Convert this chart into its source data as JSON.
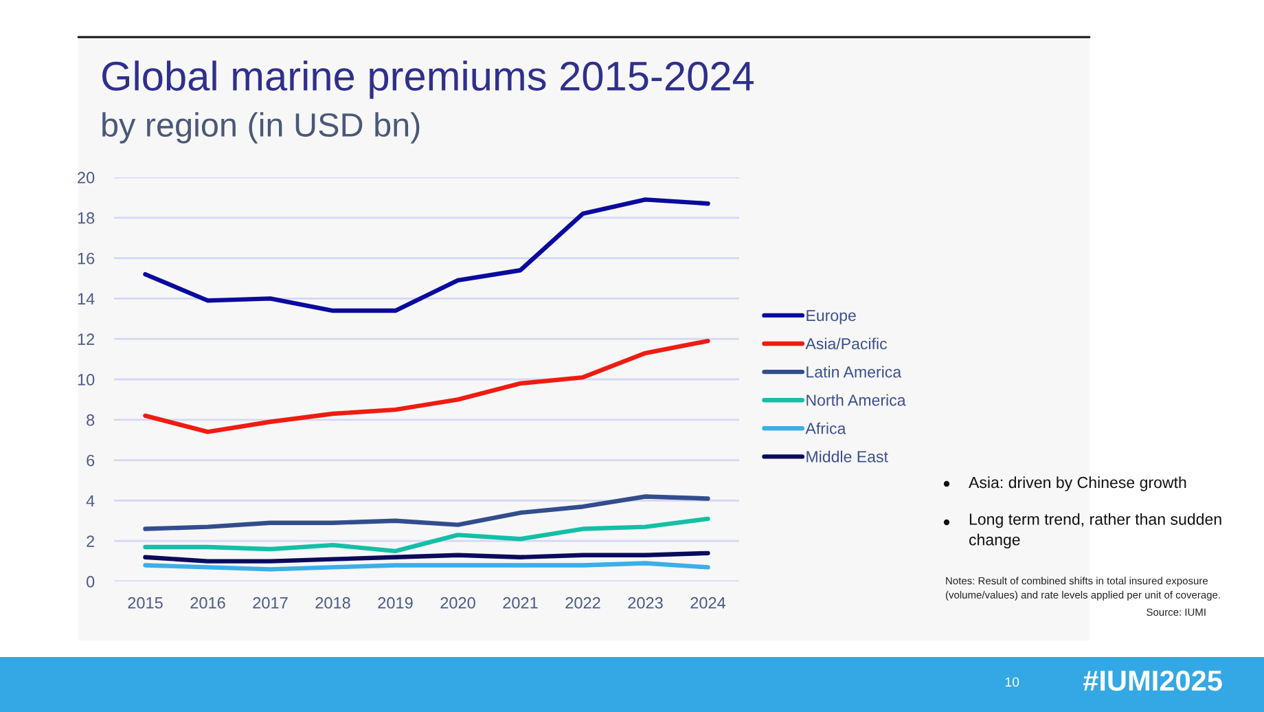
{
  "chart_data": {
    "type": "line",
    "title": "Global marine premiums 2015-2024",
    "subtitle": "by region (in USD bn)",
    "categories": [
      "2015",
      "2016",
      "2017",
      "2018",
      "2019",
      "2020",
      "2021",
      "2022",
      "2023",
      "2024"
    ],
    "series": [
      {
        "name": "Europe",
        "color": "#0a0a9e",
        "values": [
          15.2,
          13.9,
          14.0,
          13.4,
          13.4,
          14.9,
          15.4,
          18.2,
          18.9,
          18.7
        ]
      },
      {
        "name": "Asia/Pacific",
        "color": "#ee1c12",
        "values": [
          8.2,
          7.4,
          7.9,
          8.3,
          8.5,
          9.0,
          9.8,
          10.1,
          11.3,
          11.9
        ]
      },
      {
        "name": "Latin America",
        "color": "#334d8c",
        "values": [
          2.6,
          2.7,
          2.9,
          2.9,
          3.0,
          2.8,
          3.4,
          3.7,
          4.2,
          4.1
        ]
      },
      {
        "name": "North America",
        "color": "#14bfa6",
        "values": [
          1.7,
          1.7,
          1.6,
          1.8,
          1.5,
          2.3,
          2.1,
          2.6,
          2.7,
          3.1
        ]
      },
      {
        "name": "Africa",
        "color": "#3caee8",
        "values": [
          0.8,
          0.7,
          0.6,
          0.7,
          0.8,
          0.8,
          0.8,
          0.8,
          0.9,
          0.7
        ]
      },
      {
        "name": "Middle East",
        "color": "#0b0b5c",
        "values": [
          1.2,
          1.0,
          1.0,
          1.1,
          1.2,
          1.3,
          1.2,
          1.3,
          1.3,
          1.4
        ]
      }
    ],
    "ylim": [
      0,
      20
    ],
    "yticks": [
      0,
      2,
      4,
      6,
      8,
      10,
      12,
      14,
      16,
      18,
      20
    ],
    "grid": "y",
    "legend": "right",
    "annotations": [
      "Asia: driven by Chinese growth",
      "Long term trend, rather than sudden change",
      "Notes: Result of combined shifts in total insured exposure (volume/values) and rate levels applied per unit of coverage.",
      "Source: IUMI",
      "10",
      "#IUMI2025"
    ]
  }
}
